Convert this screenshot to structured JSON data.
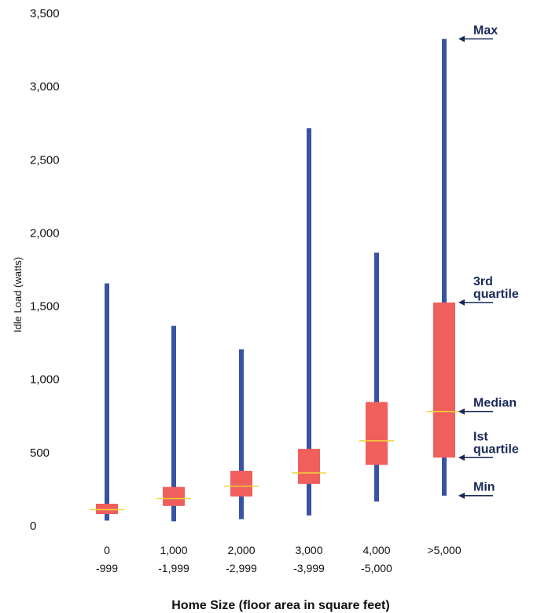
{
  "chart_data": {
    "type": "box",
    "ylabel": "Idle Load (watts)",
    "xlabel": "Home Size (floor area in square feet)",
    "ylim": [
      0,
      3500
    ],
    "yticks": [
      {
        "value": 0,
        "label": "0"
      },
      {
        "value": 500,
        "label": "500"
      },
      {
        "value": 1000,
        "label": "1,000"
      },
      {
        "value": 1500,
        "label": "1,500"
      },
      {
        "value": 2000,
        "label": "2,000"
      },
      {
        "value": 2500,
        "label": "2,500"
      },
      {
        "value": 3000,
        "label": "3,000"
      },
      {
        "value": 3500,
        "label": "3,500"
      }
    ],
    "categories": [
      {
        "line1": "0",
        "line2": "-999"
      },
      {
        "line1": "1,000",
        "line2": "-1,999"
      },
      {
        "line1": "2,000",
        "line2": "-2,999"
      },
      {
        "line1": "3,000",
        "line2": "-3,999"
      },
      {
        "line1": "4,000",
        "line2": "-5,000"
      },
      {
        "line1": ">5,000",
        "line2": ""
      }
    ],
    "boxes": [
      {
        "min": 30,
        "q1": 75,
        "median": 105,
        "q3": 145,
        "max": 1650
      },
      {
        "min": 25,
        "q1": 130,
        "median": 180,
        "q3": 260,
        "max": 1360
      },
      {
        "min": 40,
        "q1": 195,
        "median": 265,
        "q3": 370,
        "max": 1200
      },
      {
        "min": 65,
        "q1": 280,
        "median": 355,
        "q3": 520,
        "max": 2710
      },
      {
        "min": 160,
        "q1": 410,
        "median": 575,
        "q3": 840,
        "max": 1860
      },
      {
        "min": 200,
        "q1": 460,
        "median": 775,
        "q3": 1520,
        "max": 3320
      }
    ],
    "annotations": [
      {
        "label": "Max",
        "target": "max"
      },
      {
        "label": "3rd quartile",
        "target": "q3"
      },
      {
        "label": "Median",
        "target": "median"
      },
      {
        "label": "Ist quartile",
        "target": "q1"
      },
      {
        "label": "Min",
        "target": "min"
      }
    ],
    "colors": {
      "whisker": "#3653a4",
      "box": "#f05f5c",
      "median": "#f2d23a",
      "annotation": "#1a2a57"
    }
  }
}
